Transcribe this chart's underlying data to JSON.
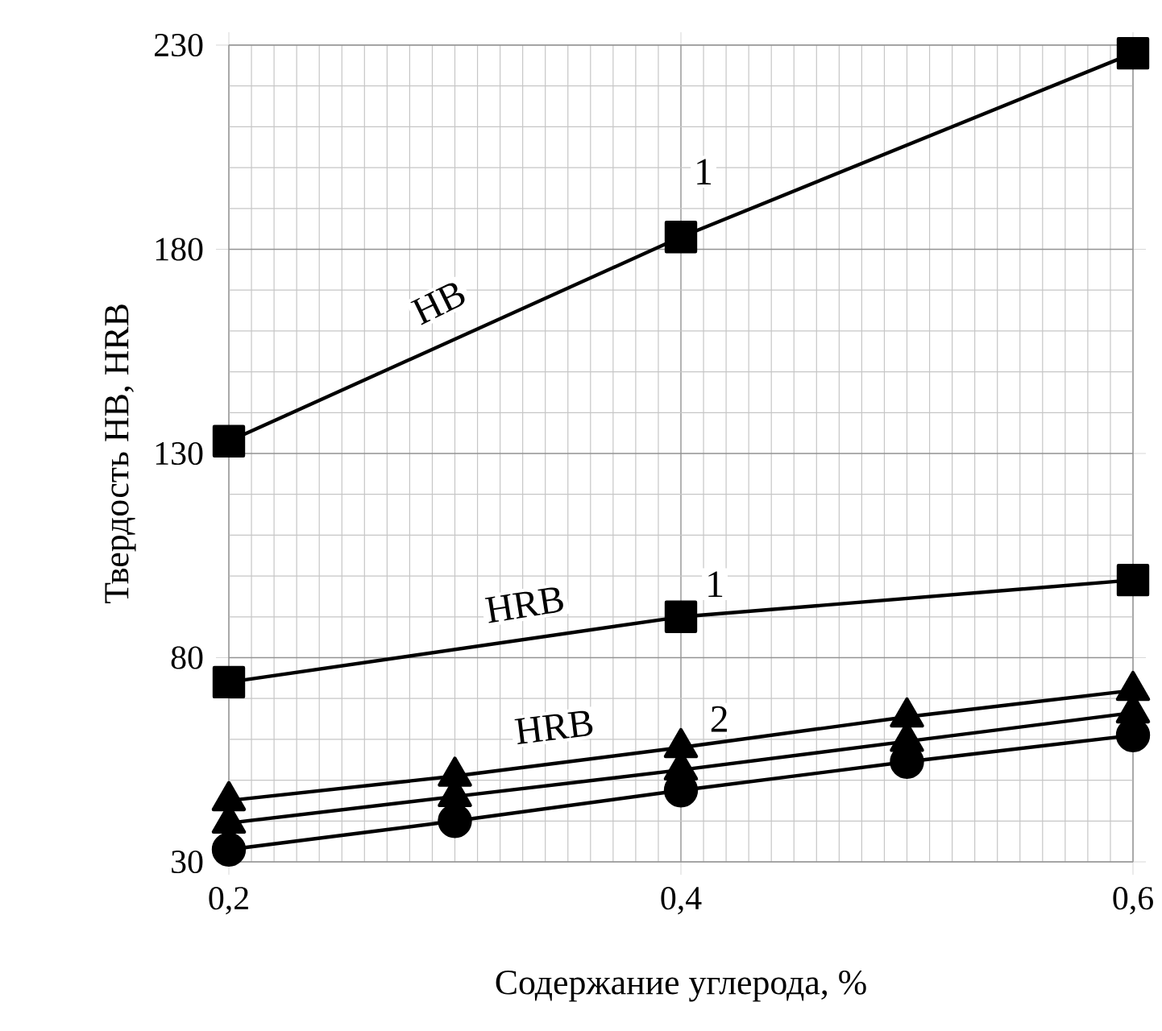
{
  "chart_data": {
    "type": "line",
    "xlabel": "Содержание углерода, %",
    "ylabel": "Твердость HB, HRB",
    "xlim": [
      0.2,
      0.6
    ],
    "xticks": [
      {
        "value": 0.2,
        "label": "0,2"
      },
      {
        "value": 0.4,
        "label": "0,4"
      },
      {
        "value": 0.6,
        "label": "0,6"
      }
    ],
    "ylim": [
      30,
      230
    ],
    "yticks": [
      30,
      80,
      130,
      180,
      230
    ],
    "grid": true,
    "line_style": "solid",
    "series": [
      {
        "color": "#000000",
        "marker": "square",
        "x": [
          0.2,
          0.4,
          0.6
        ],
        "values": [
          133,
          183,
          228
        ]
      },
      {
        "color": "#000000",
        "marker": "square",
        "x": [
          0.2,
          0.4,
          0.6
        ],
        "values": [
          74,
          90,
          99
        ]
      },
      {
        "color": "#000000",
        "marker": "triangle",
        "x": [
          0.2,
          0.3,
          0.4,
          0.5,
          0.6
        ],
        "values": [
          45,
          51,
          58,
          65.5,
          72
        ]
      },
      {
        "color": "#000000",
        "marker": "triangle",
        "x": [
          0.2,
          0.3,
          0.4,
          0.5,
          0.6
        ],
        "values": [
          39.5,
          46,
          52.5,
          59.5,
          66.5
        ]
      },
      {
        "color": "#000000",
        "marker": "circle",
        "x": [
          0.2,
          0.3,
          0.4,
          0.5,
          0.6
        ],
        "values": [
          33,
          40,
          47.5,
          54.5,
          61
        ]
      }
    ],
    "annotations": [
      {
        "text": "HB",
        "x": 0.293,
        "y": 167
      },
      {
        "text": "1",
        "x": 0.41,
        "y": 199
      },
      "HRB",
      {
        "text": "1",
        "x": 0.415,
        "y": 98
      },
      "HRB",
      {
        "text": "2",
        "x": 0.417,
        "y": 65
      }
    ]
  }
}
